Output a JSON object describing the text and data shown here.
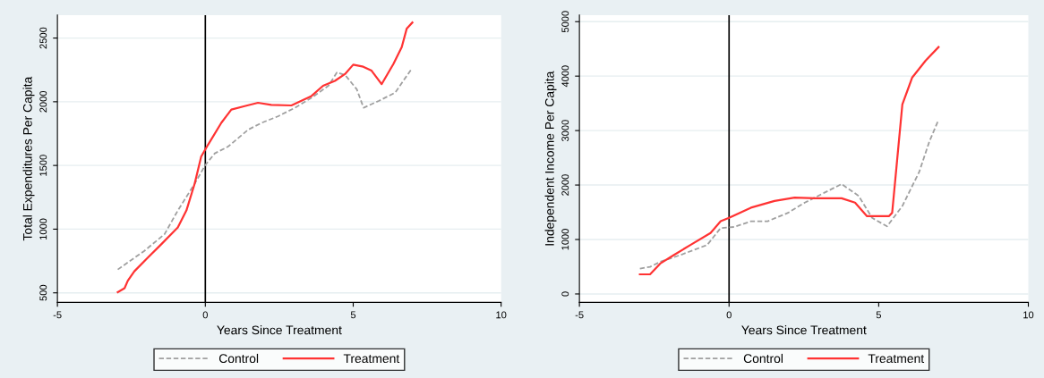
{
  "chart_data": [
    {
      "type": "line",
      "xlabel": "Years Since Treatment",
      "ylabel": "Total Expenditures Per Capita",
      "xlim": [
        -5,
        10
      ],
      "xticks": [
        -5,
        0,
        5,
        10
      ],
      "ylim": [
        425,
        2680
      ],
      "yticks": [
        500,
        1000,
        1500,
        2000,
        2500
      ],
      "grid": "y",
      "legend": "bottom",
      "ref_lines": [
        {
          "axis": "x",
          "value": 0,
          "color": "#000000"
        }
      ],
      "series": [
        {
          "name": "Control",
          "color": "#a0a0a0",
          "line_style": "dashed",
          "x": [
            -2.96,
            -2.07,
            -1.38,
            -0.93,
            -0.36,
            0,
            0.32,
            0.77,
            1.45,
            1.9,
            2.47,
            3.03,
            3.6,
            4.16,
            4.45,
            4.73,
            5.12,
            5.35,
            5.86,
            6.42,
            6.97
          ],
          "values": [
            683,
            828,
            960,
            1146,
            1357,
            1503,
            1595,
            1648,
            1781,
            1834,
            1887,
            1953,
            2032,
            2125,
            2230,
            2209,
            2098,
            1953,
            2006,
            2072,
            2257
          ]
        },
        {
          "name": "Treatment",
          "color": "#ff3333",
          "line_style": "solid",
          "x": [
            -2.96,
            -2.73,
            -2.62,
            -2.4,
            -1.95,
            -1.49,
            -0.93,
            -0.64,
            -0.36,
            -0.14,
            0.09,
            0.54,
            0.88,
            1.33,
            1.78,
            2.23,
            2.91,
            3.59,
            3.98,
            4.38,
            4.72,
            5.0,
            5.34,
            5.62,
            5.96,
            6.36,
            6.64,
            6.81,
            7.0
          ],
          "values": [
            505,
            537,
            595,
            669,
            775,
            881,
            1013,
            1146,
            1357,
            1569,
            1662,
            1834,
            1939,
            1966,
            1992,
            1976,
            1971,
            2045,
            2125,
            2164,
            2217,
            2291,
            2275,
            2244,
            2138,
            2297,
            2429,
            2575,
            2622
          ]
        }
      ]
    },
    {
      "type": "line",
      "xlabel": "Years Since Treatment",
      "ylabel": "Independent Income Per Capita",
      "xlim": [
        -5,
        10
      ],
      "xticks": [
        -5,
        0,
        5,
        10
      ],
      "ylim": [
        -155,
        5120
      ],
      "yticks": [
        0,
        1000,
        2000,
        3000,
        4000,
        5000
      ],
      "grid": "y",
      "legend": "bottom",
      "ref_lines": [
        {
          "axis": "x",
          "value": 0,
          "color": "#000000"
        }
      ],
      "series": [
        {
          "name": "Control",
          "color": "#a0a0a0",
          "line_style": "dashed",
          "x": [
            -2.98,
            -2.64,
            -2.3,
            -1.63,
            -0.73,
            -0.28,
            0.17,
            0.73,
            1.29,
            1.97,
            2.53,
            3.2,
            3.76,
            4.33,
            4.78,
            5.28,
            5.79,
            6.35,
            6.69,
            7.0
          ],
          "values": [
            466,
            497,
            590,
            714,
            900,
            1211,
            1230,
            1335,
            1335,
            1490,
            1677,
            1863,
            2018,
            1801,
            1397,
            1242,
            1615,
            2236,
            2795,
            3198
          ]
        },
        {
          "name": "Treatment",
          "color": "#ff3333",
          "line_style": "solid",
          "x": [
            -2.98,
            -2.64,
            -2.3,
            -1.85,
            -1.29,
            -0.62,
            -0.28,
            0,
            0.73,
            1.52,
            2.19,
            2.87,
            3.76,
            4.21,
            4.61,
            5.34,
            5.45,
            5.62,
            5.79,
            6.12,
            6.57,
            7.0
          ],
          "values": [
            360,
            360,
            559,
            714,
            900,
            1118,
            1335,
            1397,
            1584,
            1708,
            1770,
            1757,
            1757,
            1677,
            1428,
            1428,
            1490,
            2484,
            3478,
            3975,
            4285,
            4533
          ]
        }
      ]
    }
  ]
}
